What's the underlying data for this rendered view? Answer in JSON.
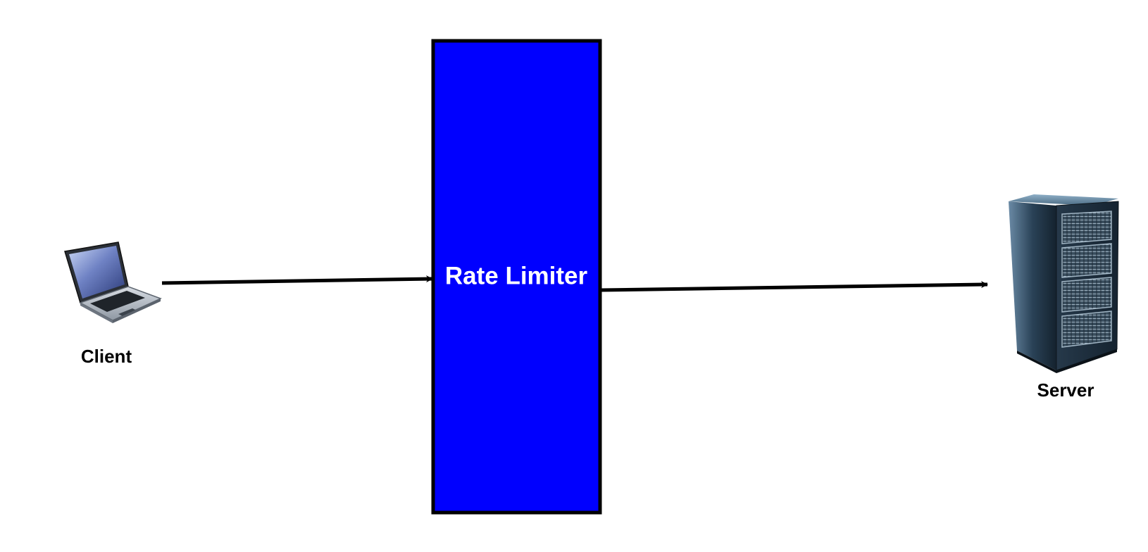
{
  "nodes": {
    "client": {
      "label": "Client",
      "icon": "laptop-icon"
    },
    "rate_limiter": {
      "label": "Rate Limiter",
      "fill": "#0000FF",
      "border": "#000000",
      "text_color": "#FFFFFF"
    },
    "server": {
      "label": "Server",
      "icon": "server-rack-icon"
    }
  },
  "edges": [
    {
      "from": "client",
      "to": "rate_limiter"
    },
    {
      "from": "rate_limiter",
      "to": "server"
    }
  ],
  "colors": {
    "background": "#FFFFFF",
    "edge": "#000000"
  }
}
